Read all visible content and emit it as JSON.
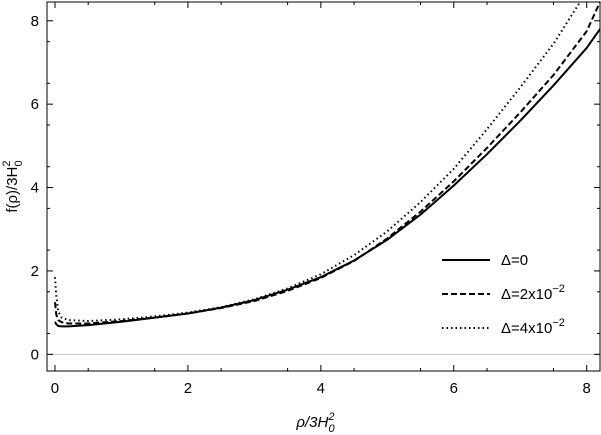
{
  "chart_data": {
    "type": "line",
    "title": "",
    "xlabel": {
      "main": "ρ/3H",
      "sub": "0",
      "sup": "2"
    },
    "ylabel": {
      "main": "f(ρ)/3H",
      "sub": "0",
      "sup": "2"
    },
    "xlim": [
      -0.12,
      8.2
    ],
    "ylim": [
      -0.4,
      8.45
    ],
    "xticks": [
      0,
      2,
      4,
      6,
      8
    ],
    "yticks": [
      0,
      2,
      4,
      6,
      8
    ],
    "grid": false,
    "zero_line": true,
    "legend_position": "bottom-right",
    "series": [
      {
        "name": "Δ=0",
        "label_parts": {
          "text": "Δ=0",
          "sup": ""
        },
        "dash": "solid",
        "x": [
          0.0,
          0.02,
          0.05,
          0.1,
          0.2,
          0.5,
          1.0,
          1.5,
          2.0,
          2.5,
          3.0,
          3.5,
          4.0,
          4.5,
          5.0,
          5.5,
          6.0,
          6.5,
          7.0,
          7.5,
          8.0,
          8.2
        ],
        "y": [
          0.78,
          0.72,
          0.68,
          0.67,
          0.67,
          0.7,
          0.78,
          0.88,
          0.98,
          1.12,
          1.3,
          1.55,
          1.85,
          2.25,
          2.75,
          3.35,
          4.05,
          4.8,
          5.6,
          6.45,
          7.35,
          7.8
        ]
      },
      {
        "name": "Δ=2x10⁻²",
        "label_parts": {
          "text": "Δ=2x10",
          "sup": "−2"
        },
        "dash": "dashed",
        "x": [
          0.0,
          0.02,
          0.05,
          0.1,
          0.2,
          0.5,
          1.0,
          1.5,
          2.0,
          2.5,
          3.0,
          3.5,
          4.0,
          4.5,
          5.0,
          5.5,
          6.0,
          6.5,
          7.0,
          7.5,
          8.0,
          8.2
        ],
        "y": [
          1.25,
          0.95,
          0.82,
          0.77,
          0.74,
          0.74,
          0.8,
          0.88,
          0.98,
          1.11,
          1.28,
          1.52,
          1.83,
          2.24,
          2.78,
          3.42,
          4.15,
          4.95,
          5.8,
          6.7,
          7.75,
          8.45
        ]
      },
      {
        "name": "Δ=4x10⁻²",
        "label_parts": {
          "text": "Δ=4x10",
          "sup": "−2"
        },
        "dash": "dotted",
        "x": [
          0.0,
          0.02,
          0.05,
          0.1,
          0.2,
          0.5,
          1.0,
          1.5,
          2.0,
          2.5,
          3.0,
          3.5,
          4.0,
          4.5,
          5.0,
          5.5,
          6.0,
          6.5,
          7.0,
          7.5,
          7.9
        ],
        "y": [
          1.85,
          1.4,
          1.02,
          0.88,
          0.82,
          0.8,
          0.84,
          0.91,
          1.0,
          1.13,
          1.32,
          1.58,
          1.92,
          2.38,
          2.95,
          3.65,
          4.45,
          5.4,
          6.4,
          7.45,
          8.45
        ]
      }
    ]
  }
}
